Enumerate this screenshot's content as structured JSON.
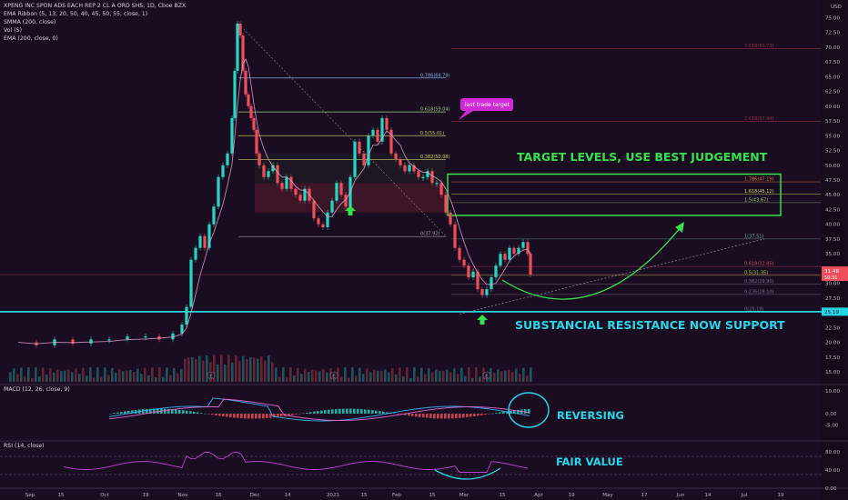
{
  "header": {
    "symbol": "XPENG INC SPON ADS EACH REP 2 CL A ORD SHS, 1D, Cboe BZX",
    "indicators": [
      "EMA Ribbon (5, 13, 20, 50, 40, 45, 50, 55, close, 1)",
      "SMMA (200, close)",
      "Vol (5)",
      "EMA (200, close, 0)"
    ]
  },
  "colors": {
    "bg": "#1a0d22",
    "up": "#26d7c2",
    "down": "#ef4f5c",
    "ribbon": "#e9a8d2",
    "support": "#23d6e6",
    "annotation_green": "#36e24a",
    "annotation_cyan": "#27d8e8",
    "macd_line": "#2fb3f0",
    "macd_signal": "#e066d0",
    "rsi": "#c23fd6"
  },
  "chart_data": [
    {
      "type": "candlestick",
      "currency_label": "USD",
      "ylim": [
        13.0,
        78.0
      ],
      "y_ticks": [
        "15.00",
        "17.50",
        "20.00",
        "22.50",
        "25.00",
        "27.50",
        "30.00",
        "32.50",
        "35.00",
        "37.50",
        "40.00",
        "42.50",
        "45.00",
        "47.50",
        "50.00",
        "52.50",
        "55.00",
        "57.50",
        "60.00",
        "62.50",
        "65.00",
        "67.50",
        "70.00",
        "72.50",
        "75.00"
      ],
      "x_ticks": [
        "Sep",
        "15",
        "Oct",
        "19",
        "Nov",
        "16",
        "Dec",
        "14",
        "2021",
        "15",
        "Feb",
        "15",
        "Mar",
        "15",
        "Apr",
        "19",
        "May",
        "17",
        "Jun",
        "14",
        "Jul",
        "19"
      ],
      "price_labels": {
        "last_price": {
          "value": "31.48",
          "sub": "50:31",
          "y": 31.48
        },
        "support": {
          "value": "25.19",
          "y": 25.19
        }
      },
      "support_level": 25.19,
      "fibonacci_retracement": {
        "levels": [
          {
            "label": "0.786(64.79)",
            "y": 64.79
          },
          {
            "label": "0.618(59.04)",
            "y": 59.04
          },
          {
            "label": "0.5(55.01)",
            "y": 55.01
          },
          {
            "label": "0.382(50.98)",
            "y": 50.98
          },
          {
            "label": "0(37.92)",
            "y": 37.92
          }
        ]
      },
      "fibonacci_extension": {
        "levels": [
          {
            "label": "1.786(47.19)",
            "y": 47.19
          },
          {
            "label": "1.618(45.12)",
            "y": 45.12
          },
          {
            "label": "1.5(43.67)",
            "y": 43.67
          },
          {
            "label": "1(37.51)",
            "y": 37.51
          },
          {
            "label": "0.618(32.85)",
            "y": 32.85
          },
          {
            "label": "0.5(31.35)",
            "y": 31.35
          },
          {
            "label": "0.382(29.90)",
            "y": 29.9
          },
          {
            "label": "0.236(28.10)",
            "y": 28.1
          },
          {
            "label": "0(25.19)",
            "y": 25.19
          }
        ],
        "upper": [
          {
            "label": "3.618(69.73)",
            "y": 69.73
          },
          {
            "label": "2.618(57.44)",
            "y": 57.44
          }
        ]
      },
      "candles_daily_summary": "Sep 2020 ~18-21, Nov breakout to 74, Dec-Feb range 38-58, Mar low ~26, bounce to 37, last 31.48",
      "earnings_markers": [
        "E",
        "E",
        "E"
      ]
    },
    {
      "type": "line",
      "name": "MACD (12, 26, close, 9)",
      "y_ticks": [
        "10.00",
        "0.00",
        "-5.00"
      ],
      "ylim": [
        -8,
        12
      ]
    },
    {
      "type": "line",
      "name": "RSI (14, close)",
      "y_ticks": [
        "80.00",
        "40.00",
        "0.00"
      ],
      "ylim": [
        0,
        100
      ]
    }
  ],
  "annotations": {
    "last_trade": "last trade target",
    "targets": "TARGET LEVELS, USE BEST JUDGEMENT",
    "support": "SUBSTANCIAL RESISTANCE NOW SUPPORT",
    "macd": "REVERSING",
    "rsi": "FAIR VALUE"
  }
}
